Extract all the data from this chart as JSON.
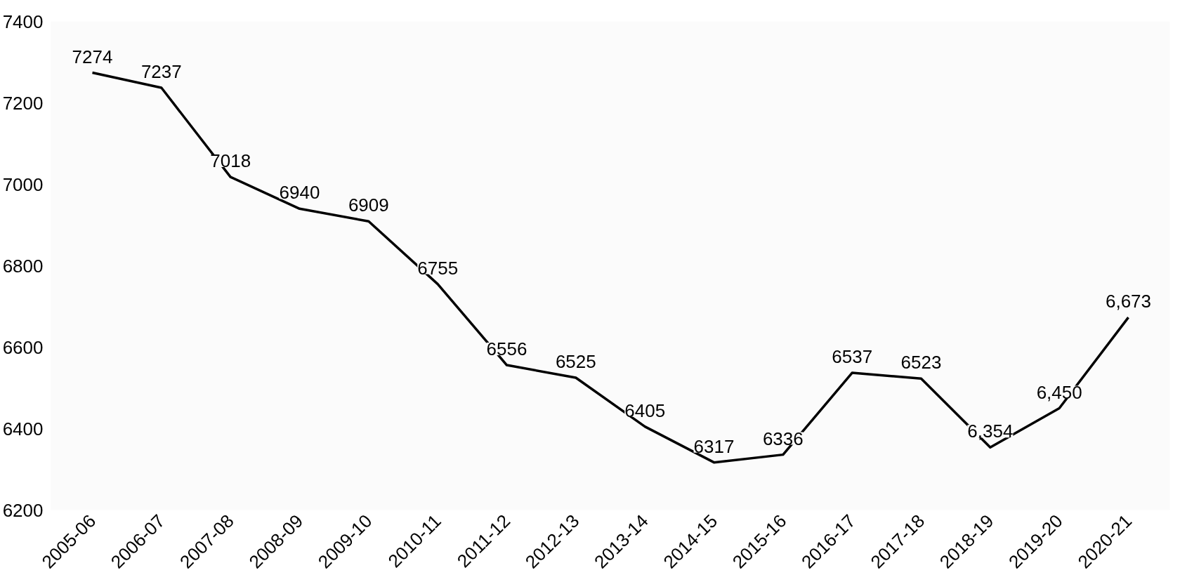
{
  "chart_data": {
    "type": "line",
    "categories": [
      "2005-06",
      "2006-07",
      "2007-08",
      "2008-09",
      "2009-10",
      "2010-11",
      "2011-12",
      "2012-13",
      "2013-14",
      "2014-15",
      "2015-16",
      "2016-17",
      "2017-18",
      "2018-19",
      "2019-20",
      "2020-21"
    ],
    "series": [
      {
        "color": "#000000",
        "values": [
          7274,
          7237,
          7018,
          6940,
          6909,
          6755,
          6556,
          6525,
          6405,
          6317,
          6336,
          6537,
          6523,
          6354,
          6450,
          6673
        ],
        "value_labels": [
          "7274",
          "7237",
          "7018",
          "6940",
          "6909",
          "6755",
          "6556",
          "6525",
          "6405",
          "6317",
          "6336",
          "6537",
          "6523",
          "6,354",
          "6,450",
          "6,673"
        ]
      }
    ],
    "ylim": [
      6200,
      7400
    ],
    "yticks": [
      6200,
      6400,
      6600,
      6800,
      7000,
      7200,
      7400
    ],
    "grid": false,
    "marker": "none",
    "line_style": "solid"
  }
}
